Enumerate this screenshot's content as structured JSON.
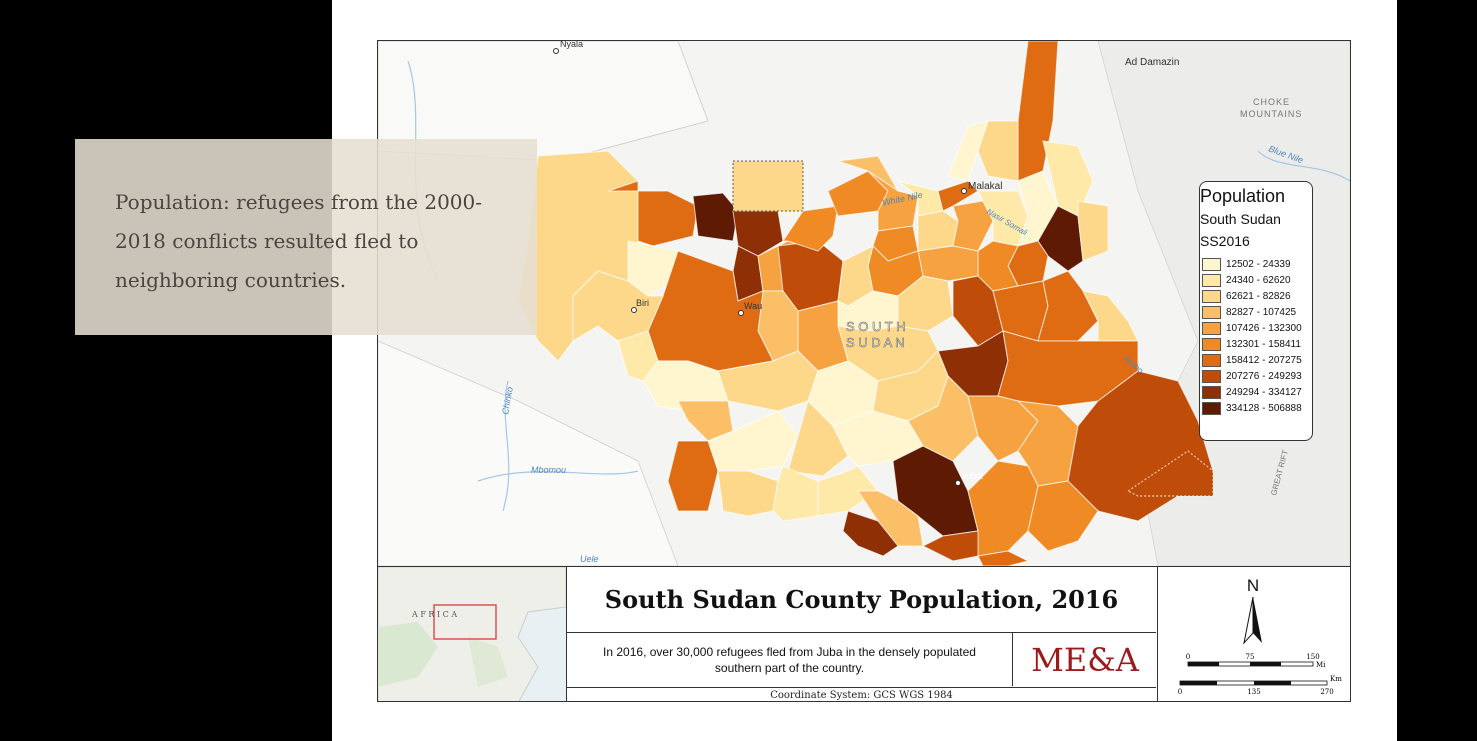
{
  "info_box": {
    "text": "Population: refugees from the 2000-2018 conflicts resulted fled to neighboring countries."
  },
  "map": {
    "place_labels": {
      "nyala": "Nyala",
      "ad_damazin": "Ad Damazin",
      "choke_1": "CHOKE",
      "choke_2": "MOUNTAINS",
      "blue_nile": "Blue Nile",
      "white_nile": "White Nile",
      "malakal": "Malakal",
      "nasir": "Nasir Somali",
      "biri": "Biri",
      "wau": "Wau",
      "south": "S O U T H",
      "sudan": "S U D A N",
      "chinko": "Chinko",
      "mbomou": "Mbomou",
      "uele": "Uele",
      "akobo": "Akobo",
      "juba": "Juba",
      "great_rift": "GREAT RIFT"
    },
    "colors": [
      "#fff6cf",
      "#fee9a9",
      "#fdd88a",
      "#fbc067",
      "#f6a240",
      "#ef8a25",
      "#df6c13",
      "#c04c0a",
      "#8f2f05",
      "#5e1a02"
    ]
  },
  "legend": {
    "title": "Population",
    "subtitle1": "South Sudan",
    "subtitle2": "SS2016",
    "items": [
      {
        "label": "12502 - 24339",
        "color": "#fff6cf"
      },
      {
        "label": "24340 - 62620",
        "color": "#fee9a9"
      },
      {
        "label": "62621 - 82826",
        "color": "#fdd88a"
      },
      {
        "label": "82827 - 107425",
        "color": "#fbc067"
      },
      {
        "label": "107426 - 132300",
        "color": "#f6a240"
      },
      {
        "label": "132301 - 158411",
        "color": "#ef8a25"
      },
      {
        "label": "158412 - 207275",
        "color": "#df6c13"
      },
      {
        "label": "207276 - 249293",
        "color": "#c04c0a"
      },
      {
        "label": "249294 - 334127",
        "color": "#8f2f05"
      },
      {
        "label": "334128 - 506888",
        "color": "#5e1a02"
      }
    ]
  },
  "layout_box": {
    "inset_label": "A F R I C A",
    "title": "South Sudan County Population, 2016",
    "description": "In 2016, over 30,000 refugees fled from Juba in the densely populated southern part of the country.",
    "logo": "ME&A",
    "coordinate_system": "Coordinate System: GCS WGS 1984",
    "north": "N",
    "scale_mi": {
      "ticks": [
        "0",
        "75",
        "150"
      ],
      "unit": "Mi"
    },
    "scale_km": {
      "ticks": [
        "0",
        "135",
        "270"
      ],
      "unit": "Km"
    }
  }
}
